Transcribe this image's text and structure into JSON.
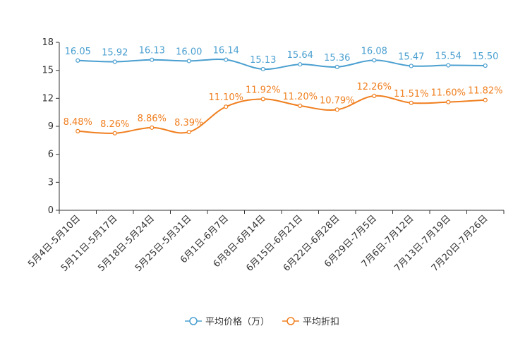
{
  "chart_data": {
    "type": "line",
    "title": "",
    "xlabel": "",
    "ylabel": "",
    "ylim": [
      0,
      18
    ],
    "yticks": [
      "0",
      "3",
      "6",
      "9",
      "12",
      "15",
      "18"
    ],
    "grid": false,
    "legend_position": "bottom",
    "categories": [
      "5月4日-5月10日",
      "5月11日-5月17日",
      "5月18日-5月24日",
      "5月25日-5月31日",
      "6月1日-6月7日",
      "6月8日-6月14日",
      "6月15日-6月21日",
      "6月22日-6月28日",
      "6月29日-7月5日",
      "7月6日-7月12日",
      "7月13日-7月19日",
      "7月20日-7月26日"
    ],
    "series": [
      {
        "name": "平均价格（万）",
        "color": "#4a9fd0",
        "values": [
          16.05,
          15.92,
          16.13,
          16.0,
          16.14,
          15.13,
          15.64,
          15.36,
          16.08,
          15.47,
          15.54,
          15.5
        ],
        "labels": [
          "16.05",
          "15.92",
          "16.13",
          "16.00",
          "16.14",
          "15.13",
          "15.64",
          "15.36",
          "16.08",
          "15.47",
          "15.54",
          "15.50"
        ]
      },
      {
        "name": "平均折扣",
        "color": "#f07f1f",
        "values": [
          8.48,
          8.26,
          8.86,
          8.39,
          11.1,
          11.92,
          11.2,
          10.79,
          12.26,
          11.51,
          11.6,
          11.82
        ],
        "labels": [
          "8.48%",
          "8.26%",
          "8.86%",
          "8.39%",
          "11.10%",
          "11.92%",
          "11.20%",
          "10.79%",
          "12.26%",
          "11.51%",
          "11.60%",
          "11.82%"
        ]
      }
    ]
  }
}
